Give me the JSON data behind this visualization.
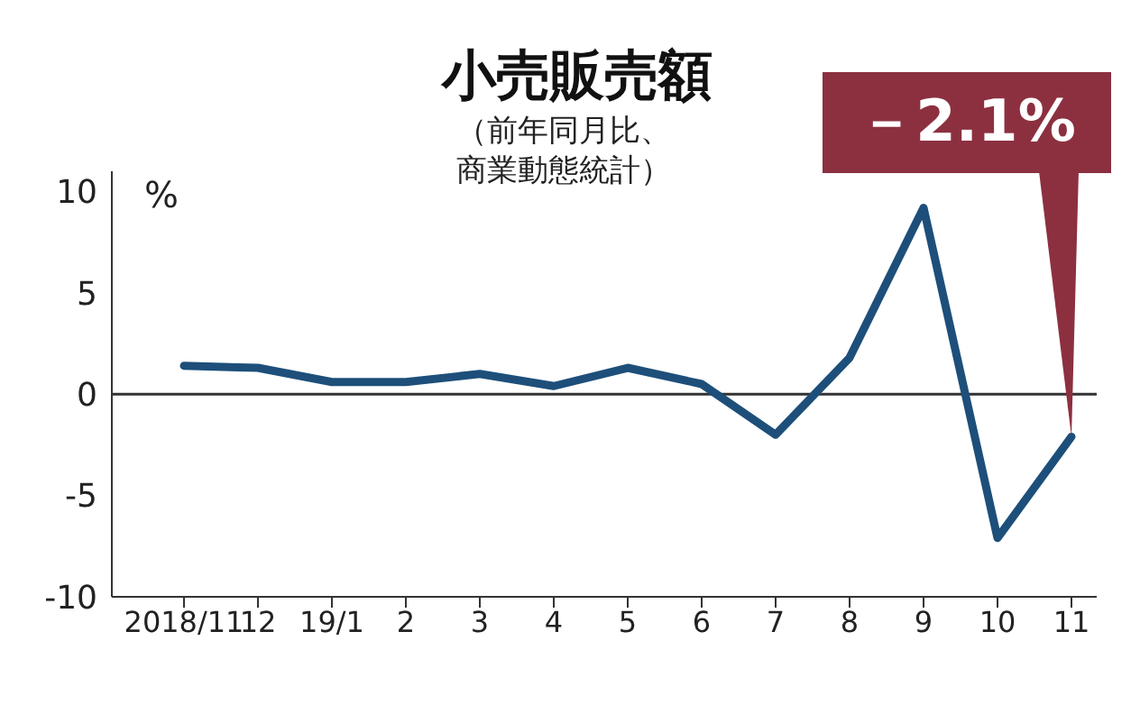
{
  "chart_data": {
    "type": "line",
    "title": "小売販売額",
    "subtitle": "（前年同月比、商業動態統計）",
    "ylabel": "%",
    "categories": [
      "2018/11",
      "12",
      "19/1",
      "2",
      "3",
      "4",
      "5",
      "6",
      "7",
      "8",
      "9",
      "10",
      "11"
    ],
    "series": [
      {
        "color": "#1d4f7a",
        "values": [
          1.4,
          1.3,
          0.6,
          0.6,
          1.0,
          0.4,
          1.3,
          0.5,
          -2.0,
          1.8,
          9.2,
          -7.1,
          -2.1
        ]
      }
    ],
    "ylim": [
      -10,
      11
    ],
    "yticks": [
      -10,
      -5,
      0,
      5,
      10
    ],
    "ref_lines": [
      {
        "axis": "y",
        "value": 0,
        "color": "#333333"
      }
    ],
    "annotations": [
      {
        "text": "－2.1%",
        "x": "11",
        "y": -2.1
      }
    ],
    "marker": "none"
  }
}
